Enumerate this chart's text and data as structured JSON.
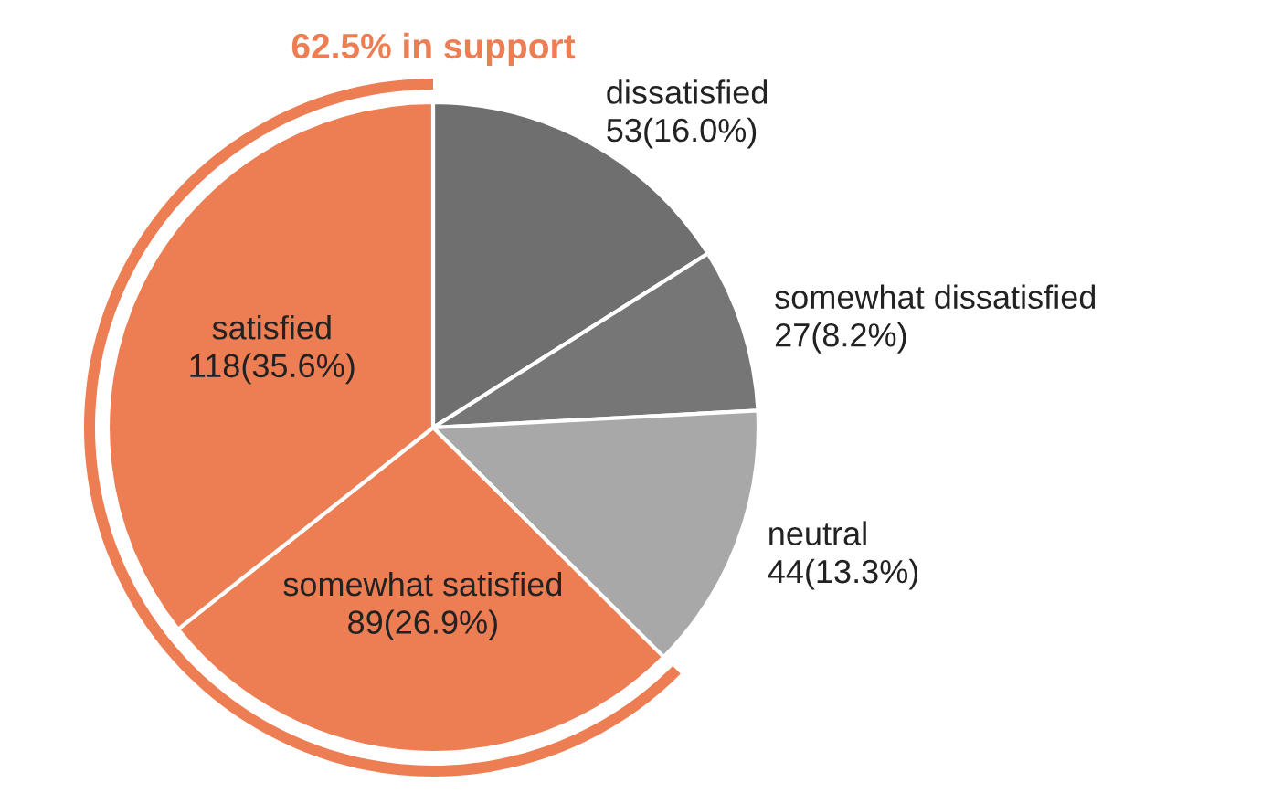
{
  "chart_data": {
    "type": "pie",
    "title": "62.5% in support",
    "categories": [
      "dissatisfied",
      "somewhat dissatisfied",
      "neutral",
      "somewhat satisfied",
      "satisfied"
    ],
    "values": [
      53,
      27,
      44,
      89,
      118
    ],
    "value_labels": [
      "53(16.0%)",
      "27(8.2%)",
      "44(13.3%)",
      "89(26.9%)",
      "118(35.6%)"
    ],
    "colors": [
      "#6f6f6f",
      "#767676",
      "#a8a8a8",
      "#ed7d52",
      "#ed7d52"
    ],
    "legend": false
  }
}
